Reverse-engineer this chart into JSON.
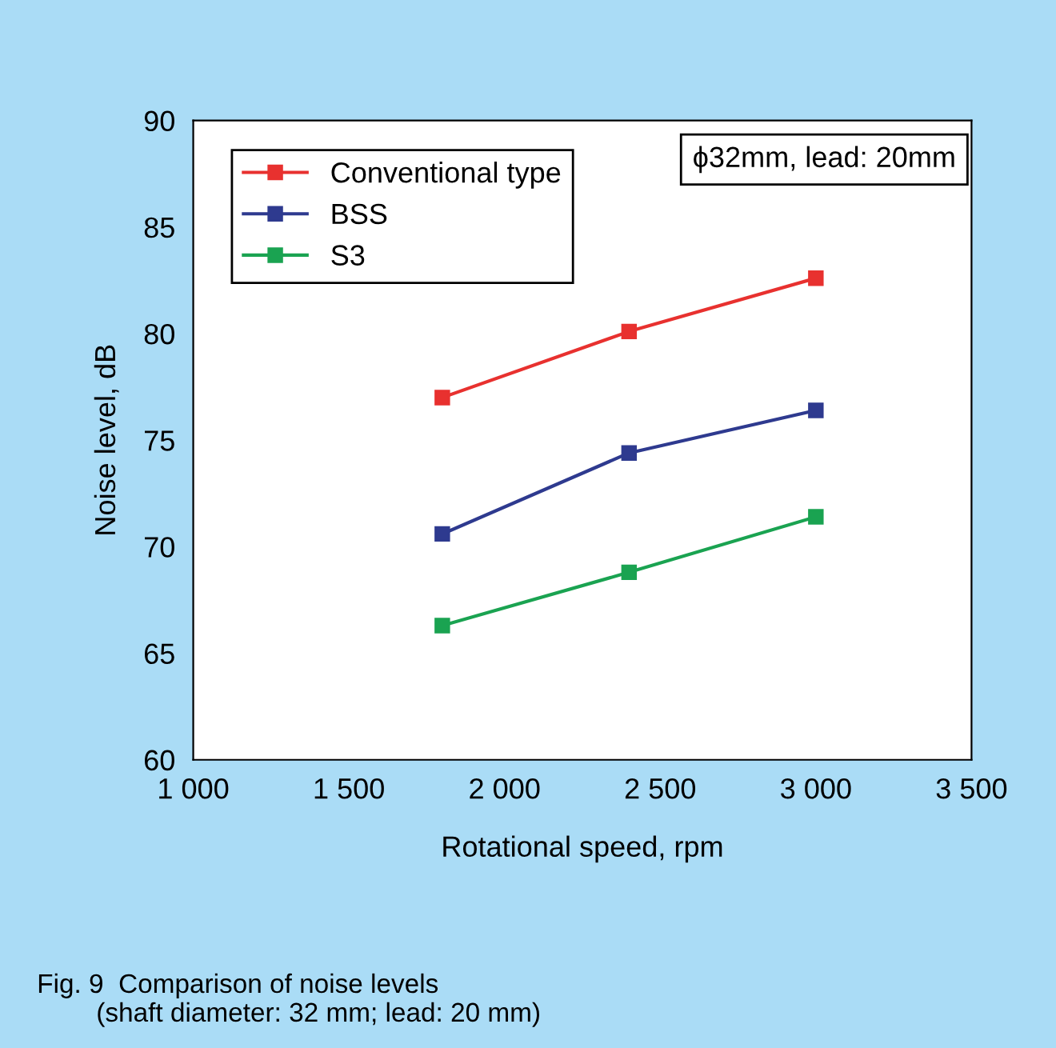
{
  "chart_data": {
    "type": "line",
    "xlabel": "Rotational speed, rpm",
    "ylabel": "Noise level, dB",
    "x": [
      1800,
      2400,
      3000
    ],
    "series": [
      {
        "name": "Conventional type",
        "color": "#e8312f",
        "values": [
          77.0,
          80.1,
          82.6
        ]
      },
      {
        "name": "BSS",
        "color": "#2e3a8f",
        "values": [
          70.6,
          74.4,
          76.4
        ]
      },
      {
        "name": "S3",
        "color": "#1aa351",
        "values": [
          66.3,
          68.8,
          71.4
        ]
      }
    ],
    "xlim": [
      1000,
      3500
    ],
    "xticks": [
      {
        "value": 1000,
        "label": "1 000"
      },
      {
        "value": 1500,
        "label": "1 500"
      },
      {
        "value": 2000,
        "label": "2 000"
      },
      {
        "value": 2500,
        "label": "2 500"
      },
      {
        "value": 3000,
        "label": "3 000"
      },
      {
        "value": 3500,
        "label": "3 500"
      }
    ],
    "ylim": [
      60,
      90
    ],
    "yticks": [
      60,
      65,
      70,
      75,
      80,
      85,
      90
    ],
    "annotations": [
      "ϕ32mm, lead: 20mm",
      "Fig. 9  Comparison of noise levels\n        (shaft diameter: 32 mm; lead: 20 mm)"
    ],
    "legend": "top left",
    "marker": "square",
    "line_style": "solid",
    "grid": false
  }
}
